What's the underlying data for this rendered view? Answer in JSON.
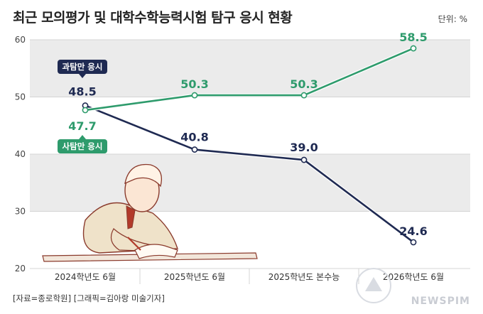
{
  "header": {
    "title": "최근 모의평가 및 대학수학능력시험 탐구 응시 현황",
    "unit": "단위: %"
  },
  "footer": {
    "source": "[자료=종로학원] [그래픽=김아랑 미술기자]"
  },
  "watermark": {
    "text": "NEWSPIM"
  },
  "colors": {
    "science": "#1f2a52",
    "social": "#2e9b6c",
    "band": "#ebebeb",
    "grid": "#d4d4d4"
  },
  "chart_data": {
    "type": "line",
    "title": "최근 모의평가 및 대학수학능력시험 탐구 응시 현황",
    "unit": "단위: %",
    "categories": [
      "2024학년도 6월",
      "2025학년도 6월",
      "2025학년도 본수능",
      "2026학년도 6월"
    ],
    "ylim": [
      20,
      60
    ],
    "yticks": [
      20,
      30,
      40,
      50,
      60
    ],
    "series": [
      {
        "name": "과탐만 응시",
        "color": "#1f2a52",
        "values": [
          48.5,
          40.8,
          39.0,
          24.6
        ],
        "labels": [
          "48.5",
          "40.8",
          "39.0",
          "24.6"
        ]
      },
      {
        "name": "사탐만 응시",
        "color": "#2e9b6c",
        "values": [
          47.7,
          50.3,
          50.3,
          58.5
        ],
        "labels": [
          "47.7",
          "50.3",
          "50.3",
          "58.5"
        ]
      }
    ],
    "grid": true,
    "legend": "callouts on first point"
  }
}
